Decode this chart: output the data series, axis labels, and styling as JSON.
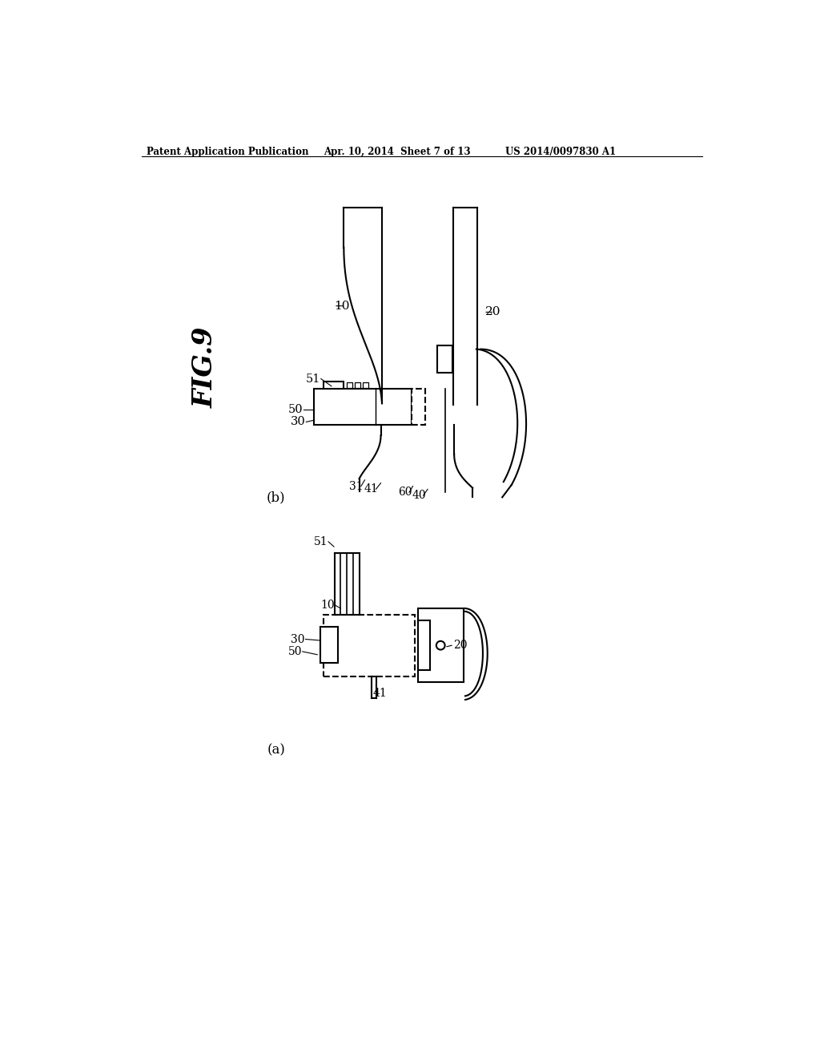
{
  "title_left": "Patent Application Publication",
  "title_mid": "Apr. 10, 2014  Sheet 7 of 13",
  "title_right": "US 2014/0097830 A1",
  "fig_label": "FIG.9",
  "background_color": "#ffffff",
  "line_color": "#000000",
  "fig_width": 10.24,
  "fig_height": 13.2
}
